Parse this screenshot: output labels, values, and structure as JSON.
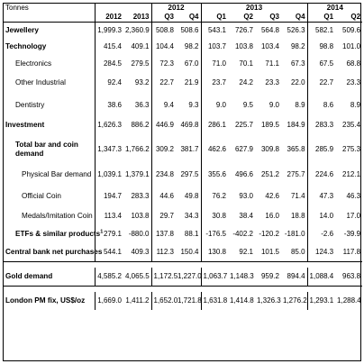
{
  "header": {
    "unit": "Tonnes",
    "group_2012": "2012",
    "group_2013": "2013",
    "group_2014": "2014",
    "col_2012": "2012",
    "col_2013": "2013",
    "q2012_3": "Q3",
    "q2012_4": "Q4",
    "q2013_1": "Q1",
    "q2013_2": "Q2",
    "q2013_3": "Q3",
    "q2013_4": "Q4",
    "q2014_1": "Q1",
    "q2014_2": "Q2"
  },
  "rows": [
    {
      "label": "Jewellery",
      "values": [
        "1,999.3",
        "2,360.9",
        "508.8",
        "508.6",
        "543.1",
        "726.7",
        "564.8",
        "526.3",
        "582.1",
        "509.6"
      ]
    },
    {
      "label": "Technology",
      "values": [
        "415.4",
        "409.1",
        "104.4",
        "98.2",
        "103.7",
        "103.8",
        "103.4",
        "98.2",
        "98.8",
        "101.0"
      ]
    },
    {
      "label": "Electronics",
      "values": [
        "284.5",
        "279.5",
        "72.3",
        "67.0",
        "71.0",
        "70.1",
        "71.1",
        "67.3",
        "67.5",
        "68.8"
      ]
    },
    {
      "label": "Other Industrial",
      "values": [
        "92.4",
        "93.2",
        "22.7",
        "21.9",
        "23.7",
        "24.2",
        "23.3",
        "22.0",
        "22.7",
        "23.3"
      ]
    },
    {
      "label": "Dentistry",
      "values": [
        "38.6",
        "36.3",
        "9.4",
        "9.3",
        "9.0",
        "9.5",
        "9.0",
        "8.9",
        "8.6",
        "8.9"
      ]
    },
    {
      "label": "Investment",
      "values": [
        "1,626.3",
        "886.2",
        "446.9",
        "469.8",
        "286.1",
        "225.7",
        "189.5",
        "184.9",
        "283.3",
        "235.4"
      ]
    },
    {
      "label_line1": "Total bar and coin",
      "label_line2": "demand",
      "values": [
        "1,347.3",
        "1,766.2",
        "309.2",
        "381.7",
        "462.6",
        "627.9",
        "309.8",
        "365.8",
        "285.9",
        "275.3"
      ]
    },
    {
      "label": "Physical Bar demand",
      "values": [
        "1,039.1",
        "1,379.1",
        "234.8",
        "297.5",
        "355.6",
        "496.6",
        "251.2",
        "275.7",
        "224.6",
        "212.1"
      ]
    },
    {
      "label": "Official Coin",
      "values": [
        "194.7",
        "283.3",
        "44.6",
        "49.8",
        "76.2",
        "93.0",
        "42.6",
        "71.4",
        "47.3",
        "46.3"
      ]
    },
    {
      "label": "Medals/Imitation Coin",
      "values": [
        "113.4",
        "103.8",
        "29.7",
        "34.3",
        "30.8",
        "38.4",
        "16.0",
        "18.8",
        "14.0",
        "17.0"
      ]
    },
    {
      "label": "ETFs & similar products",
      "sup": "1",
      "values": [
        "279.1",
        "-880.0",
        "137.8",
        "88.1",
        "-176.5",
        "-402.2",
        "-120.2",
        "-181.0",
        "-2.6",
        "-39.9"
      ]
    },
    {
      "label": "Central bank net purchases",
      "values": [
        "544.1",
        "409.3",
        "112.3",
        "150.4",
        "130.8",
        "92.1",
        "101.5",
        "85.0",
        "124.3",
        "117.8"
      ]
    },
    {
      "label": "Gold demand",
      "values": [
        "4,585.2",
        "4,065.5",
        "1,172.5",
        "1,227.0",
        "1,063.7",
        "1,148.3",
        "959.2",
        "894.4",
        "1,088.4",
        "963.8"
      ]
    },
    {
      "label": "London PM fix, US$/oz",
      "values": [
        "1,669.0",
        "1,411.2",
        "1,652.0",
        "1,721.8",
        "1,631.8",
        "1,414.8",
        "1,326.3",
        "1,276.2",
        "1,293.1",
        "1,288.4"
      ]
    }
  ]
}
